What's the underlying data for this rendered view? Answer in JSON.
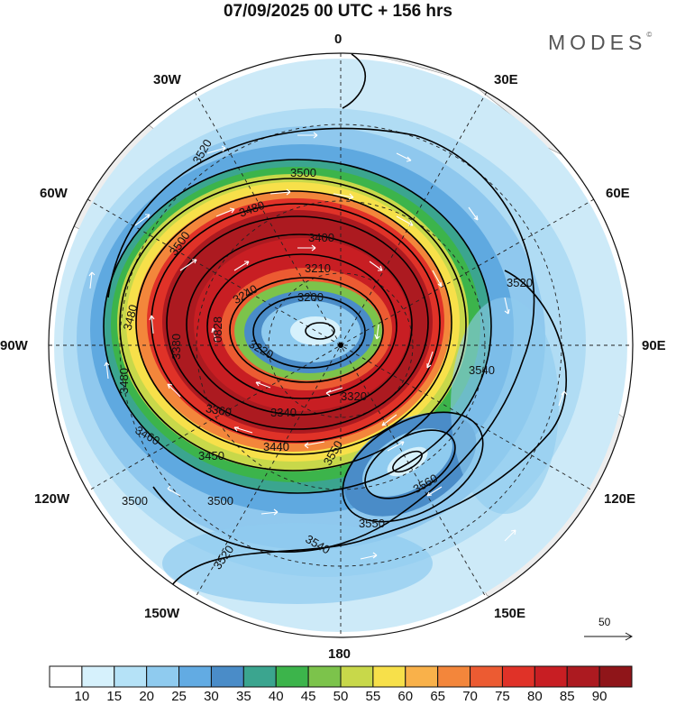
{
  "header": {
    "title": "07/09/2025  00 UTC  + 156 hrs",
    "brand": "MODES",
    "brand_mark": "©"
  },
  "map": {
    "projection": "polar-stereographic-south",
    "longitude_labels": [
      "0",
      "30E",
      "60E",
      "90E",
      "120E",
      "150E",
      "180",
      "150W",
      "120W",
      "90W",
      "60W",
      "30W"
    ],
    "contour_labels": [
      "3520",
      "3500",
      "3480",
      "3500",
      "3480",
      "3400",
      "3210",
      "3240",
      "3200",
      "3220",
      "0828",
      "3380",
      "3480",
      "3360",
      "3340",
      "3320",
      "3460",
      "3450",
      "3440",
      "3550",
      "3560",
      "3540",
      "3550",
      "3520",
      "3540",
      "3520",
      "3500",
      "3500",
      "3520"
    ],
    "field": "wind speed shaded + geopotential height contours + wind vectors",
    "reference_vector_label": "50"
  },
  "colorbar": {
    "tick_labels": [
      "10",
      "15",
      "20",
      "25",
      "30",
      "35",
      "40",
      "45",
      "50",
      "55",
      "60",
      "65",
      "70",
      "75",
      "80",
      "85",
      "90"
    ],
    "colors": [
      "#ffffff",
      "#d6f1fc",
      "#b5e2f7",
      "#8fcbef",
      "#62abe3",
      "#4a8cc8",
      "#3ba58f",
      "#3cb44b",
      "#7cc34b",
      "#c8d84a",
      "#f7e04a",
      "#f9b14a",
      "#f3863b",
      "#ec5b32",
      "#e03228",
      "#c81e23",
      "#ac1a20",
      "#8f1519"
    ]
  }
}
